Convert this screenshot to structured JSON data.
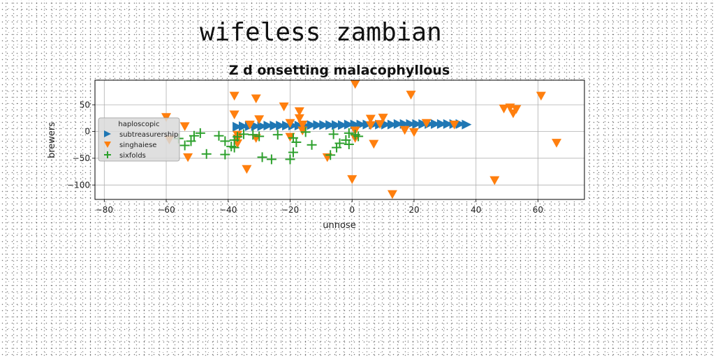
{
  "figure": {
    "title": "wifeless zambian"
  },
  "chart_data": {
    "type": "scatter",
    "title": "Z d onsetting malacophyllous",
    "xlabel": "unnose",
    "ylabel": "brewers",
    "xlim": [
      -83,
      75
    ],
    "ylim": [
      -127,
      96
    ],
    "xticks": [
      -80,
      -60,
      -40,
      -20,
      0,
      20,
      40,
      60
    ],
    "yticks": [
      50,
      0,
      -50,
      -100
    ],
    "grid": true,
    "legend": {
      "title": "haploscopic",
      "placement": "center-left"
    },
    "series": [
      {
        "name": "subtreasurership",
        "marker": "triangle-right",
        "color": "#1f77b4",
        "points": [
          [
            -37,
            9
          ],
          [
            -35,
            10
          ],
          [
            -33,
            10
          ],
          [
            -31,
            10
          ],
          [
            -29,
            10
          ],
          [
            -27,
            11
          ],
          [
            -25,
            11
          ],
          [
            -23,
            11
          ],
          [
            -21,
            11
          ],
          [
            -19,
            11
          ],
          [
            -17,
            11
          ],
          [
            -15,
            11
          ],
          [
            -13,
            12
          ],
          [
            -11,
            12
          ],
          [
            -9,
            12
          ],
          [
            -7,
            12
          ],
          [
            -5,
            12
          ],
          [
            -3,
            12
          ],
          [
            -1,
            13
          ],
          [
            1,
            13
          ],
          [
            3,
            13
          ],
          [
            5,
            13
          ],
          [
            7,
            13
          ],
          [
            9,
            13
          ],
          [
            11,
            13
          ],
          [
            13,
            13
          ],
          [
            15,
            14
          ],
          [
            17,
            14
          ],
          [
            19,
            14
          ],
          [
            21,
            14
          ],
          [
            23,
            14
          ],
          [
            25,
            14
          ],
          [
            27,
            14
          ],
          [
            29,
            14
          ],
          [
            31,
            14
          ],
          [
            33,
            14
          ],
          [
            35,
            14
          ],
          [
            37,
            13
          ]
        ]
      },
      {
        "name": "singhaiese",
        "marker": "triangle-down",
        "color": "#ff7f0e",
        "points": [
          [
            -60,
            27
          ],
          [
            -59,
            -15
          ],
          [
            -54,
            10
          ],
          [
            -53,
            -48
          ],
          [
            -38,
            67
          ],
          [
            -38,
            32
          ],
          [
            -37,
            -13
          ],
          [
            -37,
            -22
          ],
          [
            -37,
            -6
          ],
          [
            -34,
            -70
          ],
          [
            -33,
            13
          ],
          [
            -31,
            -12
          ],
          [
            -31,
            62
          ],
          [
            -30,
            23
          ],
          [
            -22,
            47
          ],
          [
            -20,
            -10
          ],
          [
            -20,
            16
          ],
          [
            -17,
            38
          ],
          [
            -17,
            25
          ],
          [
            -16,
            13
          ],
          [
            -16,
            2
          ],
          [
            -8,
            -48
          ],
          [
            0,
            -89
          ],
          [
            1,
            2
          ],
          [
            1,
            -12
          ],
          [
            1,
            89
          ],
          [
            6,
            24
          ],
          [
            6,
            12
          ],
          [
            7,
            -23
          ],
          [
            9,
            14
          ],
          [
            10,
            26
          ],
          [
            13,
            -117
          ],
          [
            17,
            3
          ],
          [
            19,
            69
          ],
          [
            20,
            -1
          ],
          [
            24,
            16
          ],
          [
            33,
            13
          ],
          [
            46,
            -91
          ],
          [
            49,
            43
          ],
          [
            51,
            45
          ],
          [
            52,
            34
          ],
          [
            53,
            42
          ],
          [
            61,
            67
          ],
          [
            66,
            -21
          ]
        ]
      },
      {
        "name": "sixfolds",
        "marker": "plus",
        "color": "#2ca02c",
        "points": [
          [
            -56,
            -13
          ],
          [
            -54,
            -26
          ],
          [
            -52,
            -18
          ],
          [
            -51,
            -8
          ],
          [
            -49,
            -3
          ],
          [
            -47,
            -42
          ],
          [
            -43,
            -8
          ],
          [
            -41,
            -18
          ],
          [
            -41,
            -43
          ],
          [
            -39,
            -28
          ],
          [
            -38,
            -16
          ],
          [
            -38,
            -30
          ],
          [
            -37,
            -10
          ],
          [
            -35,
            -5
          ],
          [
            -32,
            -6
          ],
          [
            -30,
            -9
          ],
          [
            -29,
            -48
          ],
          [
            -26,
            -52
          ],
          [
            -24,
            -6
          ],
          [
            -20,
            -52
          ],
          [
            -19,
            -12
          ],
          [
            -19,
            -39
          ],
          [
            -18,
            -20
          ],
          [
            -15,
            -1
          ],
          [
            -13,
            -25
          ],
          [
            -7,
            -44
          ],
          [
            -6,
            -5
          ],
          [
            -5,
            -30
          ],
          [
            -4,
            -22
          ],
          [
            -2,
            -16
          ],
          [
            -1,
            -24
          ],
          [
            -1,
            -3
          ],
          [
            1,
            -6
          ],
          [
            2,
            -9
          ]
        ]
      }
    ]
  }
}
